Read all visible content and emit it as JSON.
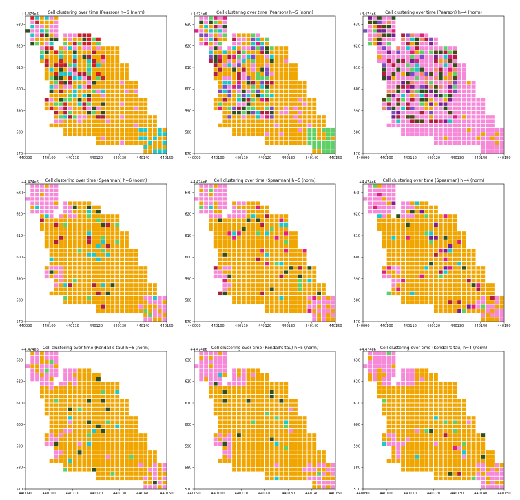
{
  "figure": {
    "palette": {
      "orange": "#f0a500",
      "pink": "#f78ad8",
      "cyan": "#1ec8c8",
      "green": "#5fd068",
      "darkgreen": "#2f4f1e",
      "crimson": "#b01e3c",
      "magenta": "#e0207a",
      "purple": "#7a1f8f",
      "red": "#d42020",
      "salmon": "#f08a6a",
      "lightgreen": "#8be05a",
      "olive": "#4a4a14",
      "violet": "#7c4cc4"
    }
  },
  "chart_data": [
    {
      "type": "heatmap",
      "title": "Cell clustering over time (Pearson) h=6 (norm)",
      "offset_text": "+4.474e6",
      "xlim": [
        440090,
        440150
      ],
      "ylim": [
        570,
        634
      ],
      "xticks": [
        "440090",
        "440100",
        "440110",
        "440120",
        "440130",
        "440140",
        "440150"
      ],
      "yticks": [
        "570",
        "580",
        "590",
        "600",
        "610",
        "620",
        "630"
      ],
      "dominant_cluster": "orange",
      "clusters_present": [
        "orange",
        "pink",
        "cyan",
        "green",
        "darkgreen",
        "crimson",
        "red"
      ]
    },
    {
      "type": "heatmap",
      "title": "Cell clustering over time (Pearson) h=5 (norm)",
      "offset_text": "+4.474e6",
      "xlim": [
        440090,
        440150
      ],
      "ylim": [
        570,
        634
      ],
      "xticks": [
        "440090",
        "440100",
        "440110",
        "440120",
        "440130",
        "440140",
        "440150"
      ],
      "yticks": [
        "570",
        "580",
        "590",
        "600",
        "610",
        "620",
        "630"
      ],
      "dominant_cluster": "orange",
      "clusters_present": [
        "orange",
        "pink",
        "cyan",
        "green",
        "darkgreen",
        "magenta",
        "crimson",
        "violet"
      ]
    },
    {
      "type": "heatmap",
      "title": "Cell clustering over time (Pearson) h=4 (norm)",
      "offset_text": "+4.474e6",
      "xlim": [
        440090,
        440150
      ],
      "ylim": [
        570,
        634
      ],
      "xticks": [
        "440090",
        "440100",
        "440110",
        "440120",
        "440130",
        "440140",
        "440150"
      ],
      "yticks": [
        "570",
        "580",
        "590",
        "600",
        "610",
        "620",
        "630"
      ],
      "dominant_cluster": "pink",
      "clusters_present": [
        "pink",
        "orange",
        "crimson",
        "magenta",
        "darkgreen",
        "green",
        "cyan",
        "purple",
        "salmon",
        "olive",
        "violet"
      ]
    },
    {
      "type": "heatmap",
      "title": "Cell clustering over time (Spearman) h=6 (norm)",
      "offset_text": "+4.474e6",
      "xlim": [
        440090,
        440150
      ],
      "ylim": [
        570,
        634
      ],
      "xticks": [
        "440090",
        "440100",
        "440110",
        "440120",
        "440130",
        "440140",
        "440150"
      ],
      "yticks": [
        "570",
        "580",
        "590",
        "600",
        "610",
        "620",
        "630"
      ],
      "dominant_cluster": "orange",
      "clusters_present": [
        "orange",
        "pink",
        "cyan",
        "green",
        "darkgreen",
        "crimson"
      ]
    },
    {
      "type": "heatmap",
      "title": "Cell clustering over time (Spearman) h=5 (norm)",
      "offset_text": "+4.474e6",
      "xlim": [
        440090,
        440150
      ],
      "ylim": [
        570,
        634
      ],
      "xticks": [
        "440090",
        "440100",
        "440110",
        "440120",
        "440130",
        "440140",
        "440150"
      ],
      "yticks": [
        "570",
        "580",
        "590",
        "600",
        "610",
        "620",
        "630"
      ],
      "dominant_cluster": "orange",
      "clusters_present": [
        "orange",
        "pink",
        "cyan",
        "green",
        "darkgreen",
        "crimson",
        "magenta"
      ]
    },
    {
      "type": "heatmap",
      "title": "Cell clustering over time (Spearman) h=4 (norm)",
      "offset_text": "+4.474e6",
      "xlim": [
        440090,
        440150
      ],
      "ylim": [
        570,
        634
      ],
      "xticks": [
        "440090",
        "440100",
        "440110",
        "440120",
        "440130",
        "440140",
        "440150"
      ],
      "yticks": [
        "570",
        "580",
        "590",
        "600",
        "610",
        "620",
        "630"
      ],
      "dominant_cluster": "orange",
      "clusters_present": [
        "orange",
        "pink",
        "cyan",
        "green",
        "darkgreen",
        "crimson",
        "magenta",
        "purple"
      ]
    },
    {
      "type": "heatmap",
      "title": "Cell clustering over time (Kendall's tau) h=6 (norm)",
      "offset_text": "+4.474e6",
      "xlim": [
        440090,
        440150
      ],
      "ylim": [
        570,
        634
      ],
      "xticks": [
        "440090",
        "440100",
        "440110",
        "440120",
        "440130",
        "440140",
        "440150"
      ],
      "yticks": [
        "570",
        "580",
        "590",
        "600",
        "610",
        "620",
        "630"
      ],
      "dominant_cluster": "orange",
      "clusters_present": [
        "orange",
        "pink",
        "cyan",
        "green",
        "darkgreen"
      ]
    },
    {
      "type": "heatmap",
      "title": "Cell clustering over time (Kendall's tau) h=5 (norm)",
      "offset_text": "+4.474e6",
      "xlim": [
        440090,
        440150
      ],
      "ylim": [
        570,
        634
      ],
      "xticks": [
        "440090",
        "440100",
        "440110",
        "440120",
        "440130",
        "440140",
        "440150"
      ],
      "yticks": [
        "570",
        "580",
        "590",
        "600",
        "610",
        "620",
        "630"
      ],
      "dominant_cluster": "orange",
      "clusters_present": [
        "orange",
        "pink",
        "cyan",
        "green",
        "darkgreen"
      ]
    },
    {
      "type": "heatmap",
      "title": "Cell clustering over time (Kendall's tau) h=4 (norm)",
      "offset_text": "+4.474e6",
      "xlim": [
        440090,
        440150
      ],
      "ylim": [
        570,
        634
      ],
      "xticks": [
        "440090",
        "440100",
        "440110",
        "440120",
        "440130",
        "440140",
        "440150"
      ],
      "yticks": [
        "570",
        "580",
        "590",
        "600",
        "610",
        "620",
        "630"
      ],
      "dominant_cluster": "orange",
      "clusters_present": [
        "orange",
        "pink",
        "cyan",
        "green",
        "darkgreen",
        "crimson",
        "magenta"
      ]
    }
  ]
}
